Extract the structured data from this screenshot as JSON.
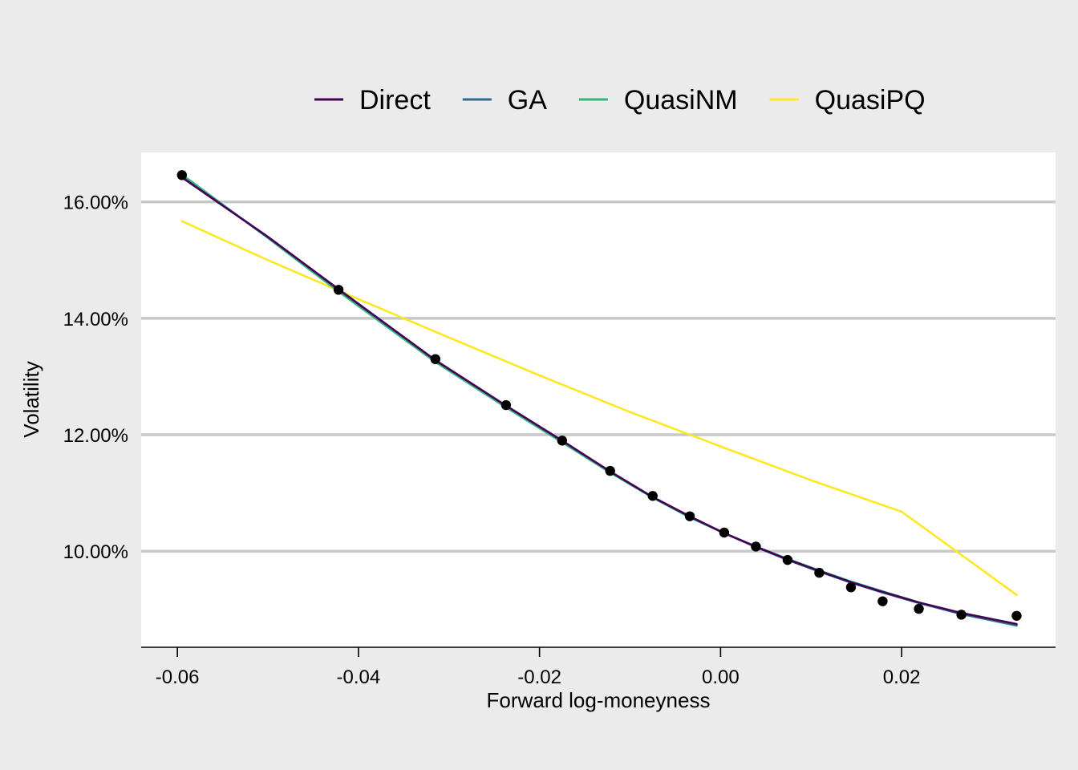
{
  "chart_data": {
    "type": "line",
    "title": "",
    "xlabel": "Forward log-moneyness",
    "ylabel": "Volatility",
    "xlim": [
      -0.064,
      0.037
    ],
    "ylim": [
      0.0835,
      0.1685
    ],
    "x_ticks": [
      -0.06,
      -0.04,
      -0.02,
      0.0,
      0.02
    ],
    "x_tick_labels": [
      "-0.06",
      "-0.04",
      "-0.02",
      "0.00",
      "0.02"
    ],
    "y_ticks": [
      0.1,
      0.12,
      0.14,
      0.16
    ],
    "y_tick_labels": [
      "10.00%",
      "12.00%",
      "14.00%",
      "16.00%"
    ],
    "grid": "horizontal-major",
    "legend_position": "top",
    "colors": {
      "background": "#ebebeb",
      "panel": "#ffffff",
      "gridline": "#c8c8c8",
      "points": "#000000"
    },
    "points": {
      "x": [
        -0.0595,
        -0.0422,
        -0.0315,
        -0.0237,
        -0.0175,
        -0.0122,
        -0.0075,
        -0.0034,
        0.0004,
        0.0039,
        0.0074,
        0.0109,
        0.0144,
        0.0179,
        0.0219,
        0.0266,
        0.0327
      ],
      "y": [
        0.1646,
        0.1449,
        0.133,
        0.1251,
        0.119,
        0.1138,
        0.1095,
        0.106,
        0.1032,
        0.1008,
        0.0985,
        0.0963,
        0.0938,
        0.0914,
        0.0901,
        0.0891,
        0.0889
      ]
    },
    "series": [
      {
        "name": "Direct",
        "color": "#440154",
        "x": [
          -0.0595,
          -0.05,
          -0.0422,
          -0.0315,
          -0.0237,
          -0.0175,
          -0.0122,
          -0.0075,
          -0.0034,
          0.0004,
          0.0039,
          0.0074,
          0.0109,
          0.0144,
          0.0179,
          0.0219,
          0.0266,
          0.0327
        ],
        "y": [
          0.1642,
          0.154,
          0.145,
          0.1328,
          0.125,
          0.119,
          0.1137,
          0.1093,
          0.106,
          0.1031,
          0.1008,
          0.0986,
          0.0966,
          0.0947,
          0.093,
          0.0912,
          0.0894,
          0.0875
        ]
      },
      {
        "name": "GA",
        "color": "#31688e",
        "x": [
          -0.0595,
          -0.05,
          -0.0422,
          -0.0315,
          -0.0237,
          -0.0175,
          -0.0122,
          -0.0075,
          -0.0034,
          0.0004,
          0.0039,
          0.0074,
          0.0109,
          0.0144,
          0.0179,
          0.0219,
          0.0266,
          0.0327
        ],
        "y": [
          0.1643,
          0.154,
          0.1449,
          0.1328,
          0.125,
          0.1189,
          0.1137,
          0.1093,
          0.1059,
          0.1031,
          0.1007,
          0.0985,
          0.0965,
          0.0946,
          0.0929,
          0.0911,
          0.0892,
          0.0873
        ]
      },
      {
        "name": "QuasiNM",
        "color": "#35b779",
        "x": [
          -0.0595,
          -0.05,
          -0.0422,
          -0.0315,
          -0.0237,
          -0.0175,
          -0.0122,
          -0.0075,
          -0.0034,
          0.0004,
          0.0039,
          0.0074,
          0.0109,
          0.0144,
          0.0179,
          0.0219,
          0.0266,
          0.0327
        ],
        "y": [
          0.1647,
          0.1538,
          0.1446,
          0.1325,
          0.1247,
          0.1187,
          0.1135,
          0.1092,
          0.1058,
          0.1031,
          0.1008,
          0.0987,
          0.0967,
          0.0948,
          0.0931,
          0.0912,
          0.0892,
          0.0872
        ]
      },
      {
        "name": "QuasiPQ",
        "color": "#fde725",
        "x": [
          -0.0595,
          -0.05,
          -0.04,
          -0.03,
          -0.02,
          -0.01,
          0.0,
          0.01,
          0.02,
          0.0327
        ],
        "y": [
          0.1567,
          0.15,
          0.1433,
          0.1367,
          0.1302,
          0.1239,
          0.118,
          0.1122,
          0.1068,
          0.0925
        ]
      }
    ]
  }
}
